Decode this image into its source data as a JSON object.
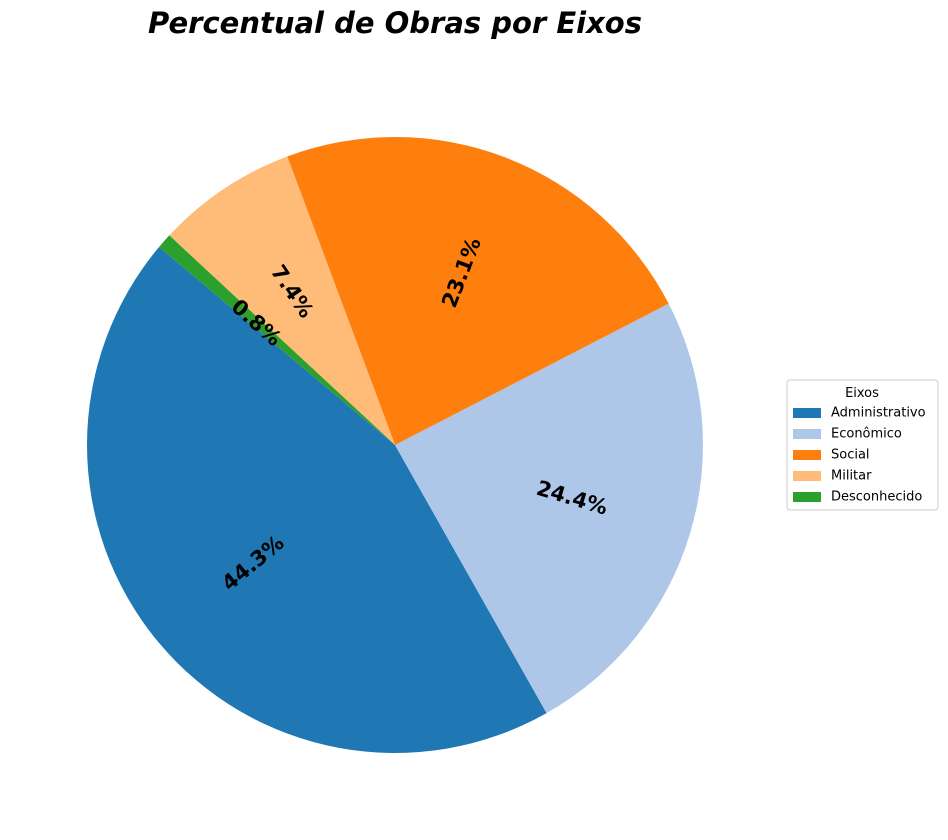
{
  "chart_data": {
    "type": "pie",
    "title": "Percentual de Obras por Eixos",
    "categories": [
      "Administrativo",
      "Econômico",
      "Social",
      "Militar",
      "Desconhecido"
    ],
    "values": [
      44.3,
      24.4,
      23.1,
      7.4,
      0.8
    ],
    "labels": [
      "44.3%",
      "24.4%",
      "23.1%",
      "7.4%",
      "0.8%"
    ],
    "colors": [
      "#1f77b4",
      "#aec7e8",
      "#ff7f0e",
      "#ffbb78",
      "#2ca02c"
    ],
    "start_angle_deg": 140,
    "direction": "counterclockwise",
    "legend": {
      "title": "Eixos",
      "placement": "right"
    }
  }
}
